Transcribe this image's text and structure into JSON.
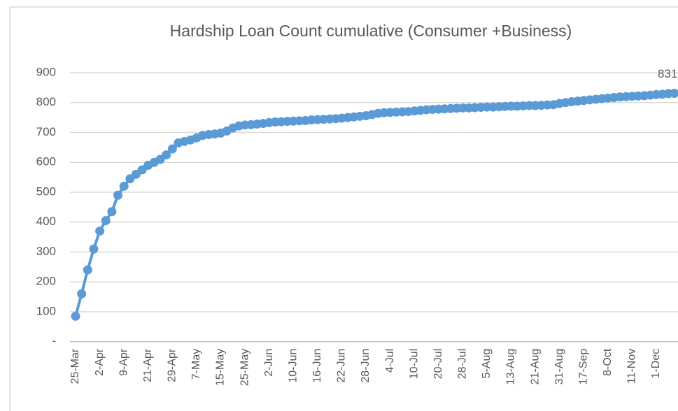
{
  "chart_data": {
    "type": "line",
    "title": "Hardship Loan Count cumulative (Consumer +Business)",
    "categories": [
      "25-Mar",
      null,
      null,
      null,
      "2-Apr",
      null,
      null,
      null,
      "9-Apr",
      null,
      null,
      null,
      "21-Apr",
      null,
      null,
      null,
      "29-Apr",
      null,
      null,
      null,
      "7-May",
      null,
      null,
      null,
      "15-May",
      null,
      null,
      null,
      "25-May",
      null,
      null,
      null,
      "2-Jun",
      null,
      null,
      null,
      "10-Jun",
      null,
      null,
      null,
      "16-Jun",
      null,
      null,
      null,
      "22-Jun",
      null,
      null,
      null,
      "28-Jun",
      null,
      null,
      null,
      "4-Jul",
      null,
      null,
      null,
      "10-Jul",
      null,
      null,
      null,
      "20-Jul",
      null,
      null,
      null,
      "28-Jul",
      null,
      null,
      null,
      "5-Aug",
      null,
      null,
      null,
      "13-Aug",
      null,
      null,
      null,
      "21-Aug",
      null,
      null,
      null,
      "31-Aug",
      null,
      null,
      null,
      "17-Sep",
      null,
      null,
      null,
      "8-Oct",
      null,
      null,
      null,
      "11-Nov",
      null,
      null,
      null,
      "1-Dec",
      null,
      null,
      null
    ],
    "series": [
      {
        "name": "Hardship Loan Count cumulative",
        "color": "#5b9bd5",
        "values": [
          85,
          160,
          240,
          310,
          370,
          405,
          435,
          490,
          520,
          545,
          560,
          575,
          590,
          600,
          610,
          625,
          645,
          665,
          670,
          675,
          682,
          690,
          693,
          695,
          698,
          705,
          715,
          722,
          725,
          726,
          728,
          730,
          733,
          735,
          736,
          737,
          738,
          739,
          740,
          742,
          743,
          744,
          745,
          746,
          748,
          750,
          752,
          754,
          756,
          760,
          764,
          766,
          767,
          768,
          769,
          770,
          772,
          774,
          776,
          777,
          778,
          779,
          780,
          781,
          782,
          782,
          783,
          784,
          785,
          785,
          786,
          787,
          788,
          788,
          789,
          790,
          790,
          791,
          792,
          793,
          797,
          800,
          803,
          805,
          807,
          809,
          811,
          813,
          815,
          817,
          819,
          820,
          821,
          822,
          823,
          825,
          827,
          828,
          830,
          831
        ]
      }
    ],
    "data_label": "last",
    "ylim": [
      0,
      1000
    ],
    "yticks": [
      {
        "value": 0,
        "label": "-"
      },
      100,
      200,
      300,
      400,
      500,
      600,
      700,
      800,
      900
    ],
    "grid": true
  }
}
